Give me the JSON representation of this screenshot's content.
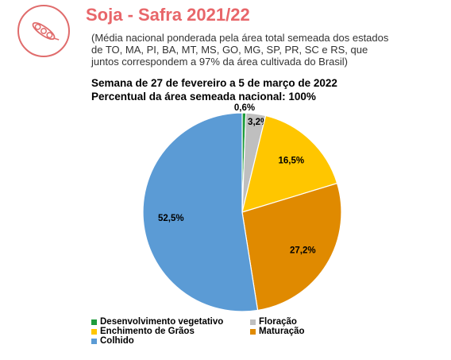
{
  "header": {
    "title": "Soja - Safra 2021/22",
    "subtitle_lines": [
      "(Média nacional ponderada pela área total semeada dos estados",
      "de TO, MA, PI, BA, MT, MS, GO, MG, SP, PR, SC e RS, que",
      "juntos correspondem a 97% da área cultivada do Brasil)"
    ],
    "logo_icon": "soybean-pod-icon"
  },
  "chart_data": {
    "type": "pie",
    "title": "Semana de 27 de fevereiro a 5 de março de 2022",
    "subtitle": "Percentual da área semeada nacional: 100%",
    "categories": [
      "Desenvolvimento vegetativo",
      "Floração",
      "Enchimento de Grãos",
      "Maturação",
      "Colhido"
    ],
    "values": [
      0.6,
      3.2,
      16.5,
      27.2,
      52.5
    ],
    "data_labels": [
      "0,6%",
      "3,2%",
      "16,5%",
      "27,2%",
      "52,5%"
    ],
    "colors": [
      "#1e9c3c",
      "#bfbfbf",
      "#ffc600",
      "#e08a00",
      "#5b9bd5"
    ],
    "legend_position": "bottom-left"
  }
}
